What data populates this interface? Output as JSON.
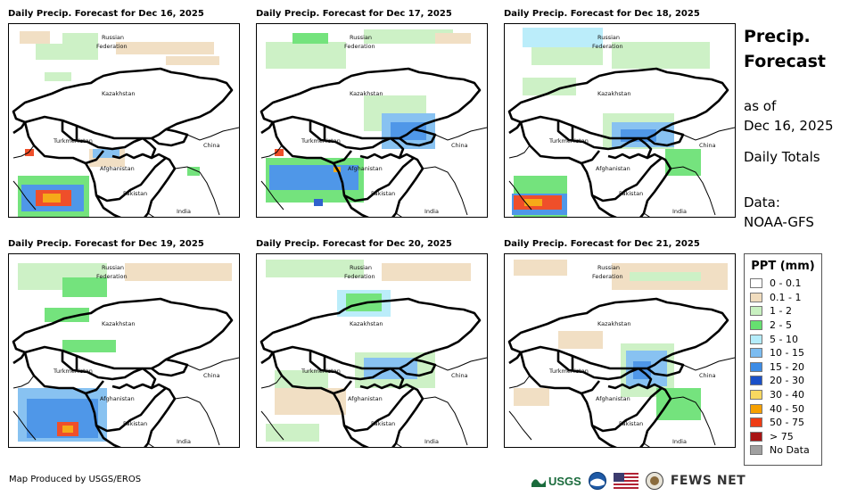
{
  "panels": [
    {
      "title": "Daily Precip. Forecast for Dec 16, 2025"
    },
    {
      "title": "Daily Precip. Forecast for Dec 17, 2025"
    },
    {
      "title": "Daily Precip. Forecast for Dec 18, 2025"
    },
    {
      "title": "Daily Precip. Forecast for Dec 19, 2025"
    },
    {
      "title": "Daily Precip. Forecast for Dec 20, 2025"
    },
    {
      "title": "Daily Precip. Forecast for Dec 21, 2025"
    }
  ],
  "map_labels": {
    "russia_1": "Russian",
    "russia_2": "Federation",
    "kazakhstan": "Kazakhstan",
    "turkmenistan": "Turkmenistan",
    "afghanistan": "Afghanistan",
    "pakistan": "Pakistan",
    "china": "China",
    "india": "India"
  },
  "side": {
    "title_line1": "Precip.",
    "title_line2": "Forecast",
    "asof_1": "as of",
    "asof_2": "Dec 16, 2025",
    "totals": "Daily Totals",
    "data_1": "Data:",
    "data_2": "NOAA-GFS"
  },
  "legend": {
    "title": "PPT (mm)",
    "items": [
      {
        "label": "0 - 0.1",
        "color": "#ffffff"
      },
      {
        "label": "0.1 - 1",
        "color": "#f0dcbe"
      },
      {
        "label": "1 - 2",
        "color": "#c8f0c0"
      },
      {
        "label": "2 - 5",
        "color": "#66e070"
      },
      {
        "label": "5 - 10",
        "color": "#b4ecfa"
      },
      {
        "label": "10 - 15",
        "color": "#7cbcf0"
      },
      {
        "label": "15 - 20",
        "color": "#3c8ce6"
      },
      {
        "label": "20 - 30",
        "color": "#1a50c8"
      },
      {
        "label": "30 - 40",
        "color": "#f8d860"
      },
      {
        "label": "40 - 50",
        "color": "#f6a000"
      },
      {
        "label": "50 - 75",
        "color": "#ee3c14"
      },
      {
        "label": "> 75",
        "color": "#a81414"
      },
      {
        "label": "No Data",
        "color": "#a0a0a0"
      }
    ]
  },
  "footer": {
    "credit": "Map Produced by USGS/EROS"
  },
  "logos": {
    "usgs": "USGS",
    "fewsnet": "FEWS NET"
  }
}
